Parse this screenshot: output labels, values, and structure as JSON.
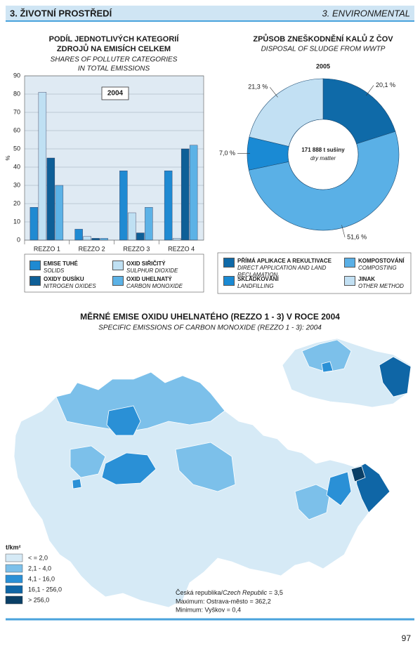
{
  "header": {
    "left": "3. ŽIVOTNÍ PROSTŘEDÍ",
    "right": "3. ENVIRONMENTAL"
  },
  "chart_data": [
    {
      "type": "bar",
      "title": [
        "PODÍL JEDNOTLIVÝCH KATEGORIÍ",
        "ZDROJŮ NA EMISÍCH CELKEM"
      ],
      "subtitle": [
        "SHARES OF POLLUTER CATEGORIES",
        "IN TOTAL EMISSIONS"
      ],
      "annotation": "2004",
      "ylabel": "%",
      "categories": [
        "REZZO 1",
        "REZZO 2",
        "REZZO 3",
        "REZZO 4"
      ],
      "series": [
        {
          "name": "EMISE TUHÉ",
          "name_en": "SOLIDS",
          "color": "#1f8ad2",
          "values": [
            18,
            6,
            38,
            38
          ]
        },
        {
          "name": "OXID SIŘIČITÝ",
          "name_en": "SULPHUR DIOXIDE",
          "color": "#bfe0f3",
          "values": [
            81,
            2,
            15,
            1
          ]
        },
        {
          "name": "OXIDY DUSÍKU",
          "name_en": "NITROGEN OXIDES",
          "color": "#0e5f97",
          "values": [
            45,
            1,
            4,
            50
          ]
        },
        {
          "name": "OXID UHELNATÝ",
          "name_en": "CARBON MONOXIDE",
          "color": "#5cb2e6",
          "values": [
            30,
            1,
            18,
            52
          ]
        }
      ],
      "ylim": [
        0,
        90
      ],
      "yticks": [
        0,
        10,
        20,
        30,
        40,
        50,
        60,
        70,
        80,
        90
      ],
      "grid": true
    },
    {
      "type": "pie",
      "title": "ZPŮSOB ZNEŠKODNĚNÍ KALŮ Z ČOV",
      "subtitle": "DISPOSAL OF SLUDGE FROM WWTP",
      "year": "2005",
      "center": [
        "171 888 t sušiny",
        "dry matter"
      ],
      "categories": [
        "PŘÍMÁ APLIKACE A REKULTIVACE",
        "KOMPOSTOVÁNÍ",
        "SKLÁDKOVÁNÍ",
        "JINAK"
      ],
      "categories_en": [
        "DIRECT APPLICATION AND LAND RECLAMATION",
        "COMPOSTING",
        "LANDFILLING",
        "OTHER METHOD"
      ],
      "values": [
        20.1,
        51.6,
        7.0,
        21.3
      ],
      "value_labels": [
        "20,1 %",
        "51,6 %",
        "7,0 %",
        "21,3 %"
      ],
      "colors": [
        "#0f6aa8",
        "#5ab0e6",
        "#1a8ad4",
        "#c2e0f3"
      ]
    }
  ],
  "map": {
    "title": "MĚRNÉ EMISE OXIDU UHELNATÉHO (REZZO 1 - 3) V ROCE 2004",
    "subtitle": "SPECIFIC EMISSIONS OF CARBON MONOXIDE (REZZO 1 - 3): 2004",
    "legend": {
      "unit": "t/km²",
      "classes": [
        {
          "label": "< = 2,0",
          "color": "#d6eaf6"
        },
        {
          "label": "2,1 - 4,0",
          "color": "#7cc0ea"
        },
        {
          "label": "4,1 - 16,0",
          "color": "#2a90d6"
        },
        {
          "label": "16,1 - 256,0",
          "color": "#0f66a6"
        },
        {
          "label": "> 256,0",
          "color": "#0a3f66"
        }
      ]
    },
    "notes": {
      "country": "Česká republika/",
      "country_en": "Czech Republic",
      "country_value": " = 3,5",
      "max": "Maximum: Ostrava-město = 362,2",
      "min": "Minimum: Vyškov = 0,4"
    }
  },
  "page_number": "97"
}
